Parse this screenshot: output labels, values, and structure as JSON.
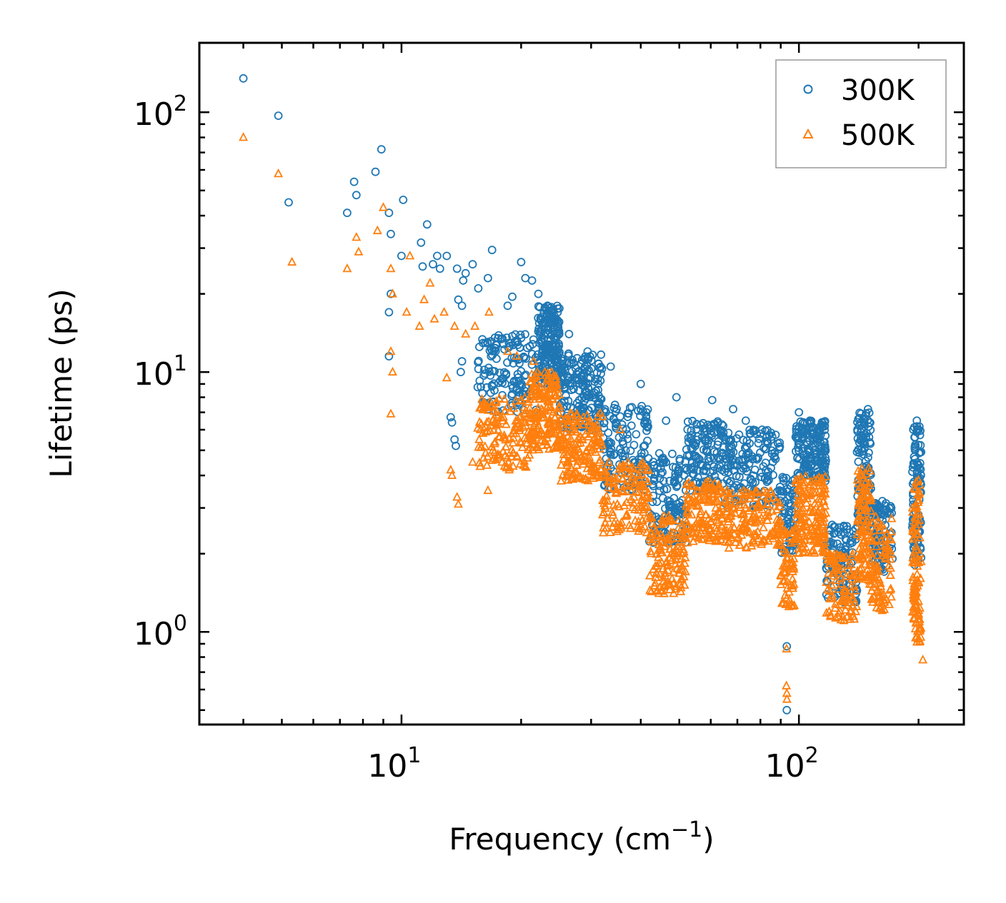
{
  "chart_data": {
    "type": "scatter",
    "title": "",
    "xlabel": "Frequency (cm",
    "xlabel_sup": "−1",
    "xlabel_end": ")",
    "ylabel": "Lifetime (ps)",
    "xscale": "log",
    "yscale": "log",
    "xlim": [
      3.1,
      260
    ],
    "ylim": [
      0.44,
      185
    ],
    "x_ticks": [
      {
        "base": "10",
        "exp": "1",
        "value": 10
      },
      {
        "base": "10",
        "exp": "2",
        "value": 100
      }
    ],
    "y_ticks": [
      {
        "base": "10",
        "exp": "0",
        "value": 1
      },
      {
        "base": "10",
        "exp": "1",
        "value": 10
      },
      {
        "base": "10",
        "exp": "2",
        "value": 100
      }
    ],
    "legend_position": "top-right",
    "series": [
      {
        "name": "300K",
        "marker": "circle",
        "color": "#1f77b4",
        "points": [
          [
            4.0,
            135
          ],
          [
            4.9,
            97
          ],
          [
            5.2,
            45
          ],
          [
            7.3,
            41
          ],
          [
            7.6,
            54
          ],
          [
            7.7,
            48
          ],
          [
            8.6,
            59
          ],
          [
            8.9,
            72
          ],
          [
            9.3,
            41
          ],
          [
            9.4,
            34
          ],
          [
            9.4,
            20
          ],
          [
            9.3,
            17
          ],
          [
            9.3,
            11.5
          ],
          [
            10.0,
            28
          ],
          [
            10.1,
            46
          ],
          [
            11.2,
            31.5
          ],
          [
            11.6,
            37
          ],
          [
            11.3,
            25.5
          ],
          [
            12.0,
            26
          ],
          [
            12.3,
            28
          ],
          [
            12.5,
            25
          ],
          [
            13.0,
            28
          ],
          [
            13.8,
            25
          ],
          [
            13.9,
            19
          ],
          [
            14.2,
            18
          ],
          [
            14.5,
            24
          ],
          [
            14.3,
            22.5
          ],
          [
            15.1,
            26
          ],
          [
            15.6,
            21
          ],
          [
            16.5,
            23
          ],
          [
            16.9,
            29.5
          ],
          [
            14.2,
            11
          ],
          [
            14.1,
            10
          ],
          [
            13.3,
            6.7
          ],
          [
            13.4,
            6.4
          ],
          [
            13.6,
            5.5
          ],
          [
            13.7,
            5.2
          ],
          [
            15.7,
            12.5
          ],
          [
            16.8,
            11.5
          ],
          [
            17.5,
            13.5
          ],
          [
            18.5,
            18
          ],
          [
            19.0,
            19.5
          ],
          [
            20.0,
            26.5
          ],
          [
            20.5,
            23
          ],
          [
            21.3,
            22.5
          ],
          [
            22.1,
            20
          ],
          [
            23.3,
            18
          ],
          [
            23.8,
            17
          ],
          [
            26.4,
            14
          ],
          [
            29.4,
            12
          ],
          [
            33.6,
            10.5
          ],
          [
            40.0,
            9
          ],
          [
            41.3,
            7
          ],
          [
            46.3,
            6.5
          ],
          [
            49.2,
            8
          ],
          [
            60.5,
            7.8
          ],
          [
            68.3,
            7.2
          ],
          [
            73.5,
            6.5
          ],
          [
            100.0,
            7
          ],
          [
            106.6,
            6.5
          ],
          [
            149.2,
            7.2
          ],
          [
            198.0,
            6.5
          ],
          [
            93.2,
            0.88
          ],
          [
            93.2,
            0.5
          ]
        ],
        "bands": [
          {
            "x": [
              15.5,
              22
            ],
            "y": [
              7,
              14
            ],
            "n": 140
          },
          {
            "x": [
              22,
              25
            ],
            "y": [
              9,
              18
            ],
            "n": 200
          },
          {
            "x": [
              25,
              32
            ],
            "y": [
              6,
              12
            ],
            "n": 180
          },
          {
            "x": [
              32,
              42
            ],
            "y": [
              3.5,
              7.5
            ],
            "n": 140
          },
          {
            "x": [
              42,
              52
            ],
            "y": [
              2.2,
              5
            ],
            "n": 130
          },
          {
            "x": [
              52,
              65
            ],
            "y": [
              3.5,
              6.5
            ],
            "n": 140
          },
          {
            "x": [
              65,
              90
            ],
            "y": [
              3,
              6
            ],
            "n": 170
          },
          {
            "x": [
              90,
              98
            ],
            "y": [
              2,
              4
            ],
            "n": 60
          },
          {
            "x": [
              98,
              117
            ],
            "y": [
              3.8,
              6.5
            ],
            "n": 170
          },
          {
            "x": [
              117,
              140
            ],
            "y": [
              1.3,
              2.6
            ],
            "n": 110
          },
          {
            "x": [
              140,
              152
            ],
            "y": [
              2.5,
              7
            ],
            "n": 120
          },
          {
            "x": [
              152,
              172
            ],
            "y": [
              1.7,
              3.2
            ],
            "n": 90
          },
          {
            "x": [
              193,
              203
            ],
            "y": [
              1.8,
              6.2
            ],
            "n": 110
          }
        ]
      },
      {
        "name": "500K",
        "marker": "triangle",
        "color": "#ff7f0e",
        "points": [
          [
            4.0,
            80
          ],
          [
            4.9,
            58
          ],
          [
            5.3,
            26.5
          ],
          [
            7.3,
            25
          ],
          [
            7.7,
            33
          ],
          [
            7.8,
            29
          ],
          [
            8.7,
            35
          ],
          [
            9.0,
            43
          ],
          [
            9.4,
            25
          ],
          [
            9.5,
            20
          ],
          [
            9.4,
            12
          ],
          [
            9.5,
            10
          ],
          [
            9.4,
            6.9
          ],
          [
            10.3,
            17
          ],
          [
            10.5,
            28
          ],
          [
            11.1,
            15
          ],
          [
            11.4,
            19
          ],
          [
            11.8,
            22
          ],
          [
            12.1,
            16
          ],
          [
            12.8,
            17
          ],
          [
            13.0,
            9.5
          ],
          [
            13.6,
            15
          ],
          [
            14.5,
            14
          ],
          [
            15.3,
            15
          ],
          [
            16.6,
            17
          ],
          [
            13.3,
            4.2
          ],
          [
            13.4,
            4.0
          ],
          [
            13.8,
            3.3
          ],
          [
            13.9,
            3.1
          ],
          [
            15.1,
            4.5
          ],
          [
            16.5,
            3.5
          ],
          [
            18.5,
            12
          ],
          [
            19.5,
            11.5
          ],
          [
            21.5,
            11
          ],
          [
            35.5,
            6
          ],
          [
            93.0,
            0.62
          ],
          [
            93.2,
            0.58
          ],
          [
            93.3,
            0.55
          ],
          [
            93.1,
            0.86
          ],
          [
            205.0,
            0.78
          ]
        ],
        "bands": [
          {
            "x": [
              15.5,
              21
            ],
            "y": [
              4.2,
              8
            ],
            "n": 140
          },
          {
            "x": [
              21,
              25
            ],
            "y": [
              5,
              10
            ],
            "n": 180
          },
          {
            "x": [
              25,
              32
            ],
            "y": [
              3.8,
              7
            ],
            "n": 170
          },
          {
            "x": [
              32,
              42
            ],
            "y": [
              2.4,
              4.5
            ],
            "n": 140
          },
          {
            "x": [
              42,
              52
            ],
            "y": [
              1.4,
              2.8
            ],
            "n": 140
          },
          {
            "x": [
              52,
              65
            ],
            "y": [
              2.2,
              3.8
            ],
            "n": 140
          },
          {
            "x": [
              65,
              90
            ],
            "y": [
              2.1,
              3.5
            ],
            "n": 160
          },
          {
            "x": [
              90,
              98
            ],
            "y": [
              1.2,
              2.5
            ],
            "n": 60
          },
          {
            "x": [
              98,
              117
            ],
            "y": [
              2,
              4
            ],
            "n": 160
          },
          {
            "x": [
              117,
              140
            ],
            "y": [
              1.1,
              2
            ],
            "n": 100
          },
          {
            "x": [
              140,
              152
            ],
            "y": [
              1.5,
              4.3
            ],
            "n": 110
          },
          {
            "x": [
              152,
              172
            ],
            "y": [
              1.2,
              2.8
            ],
            "n": 90
          },
          {
            "x": [
              193,
              203
            ],
            "y": [
              0.9,
              3.9
            ],
            "n": 110
          }
        ]
      }
    ]
  }
}
